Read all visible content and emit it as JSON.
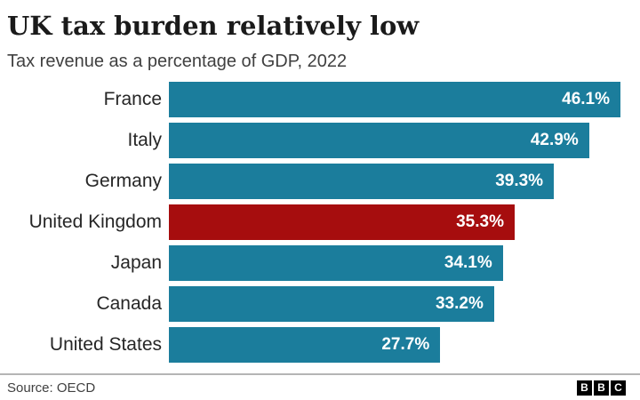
{
  "header": {
    "title": "UK tax burden relatively low",
    "subtitle": "Tax revenue as a percentage of GDP, 2022"
  },
  "chart_data": {
    "type": "bar",
    "orientation": "horizontal",
    "title": "UK tax burden relatively low",
    "subtitle": "Tax revenue as a percentage of GDP, 2022",
    "categories": [
      "France",
      "Italy",
      "Germany",
      "United Kingdom",
      "Japan",
      "Canada",
      "United States"
    ],
    "values": [
      46.1,
      42.9,
      39.3,
      35.3,
      34.1,
      33.2,
      27.7
    ],
    "value_labels": [
      "46.1%",
      "42.9%",
      "39.3%",
      "35.3%",
      "34.1%",
      "33.2%",
      "27.7%"
    ],
    "highlight_category": "United Kingdom",
    "xlim": [
      0,
      46.1
    ],
    "grid": false,
    "legend": false,
    "colors": {
      "bar": "#1b7d9c",
      "highlight": "#a60d0e",
      "value_text": "#ffffff"
    }
  },
  "footer": {
    "source": "Source: OECD",
    "logo_letters": [
      "B",
      "B",
      "C"
    ]
  }
}
